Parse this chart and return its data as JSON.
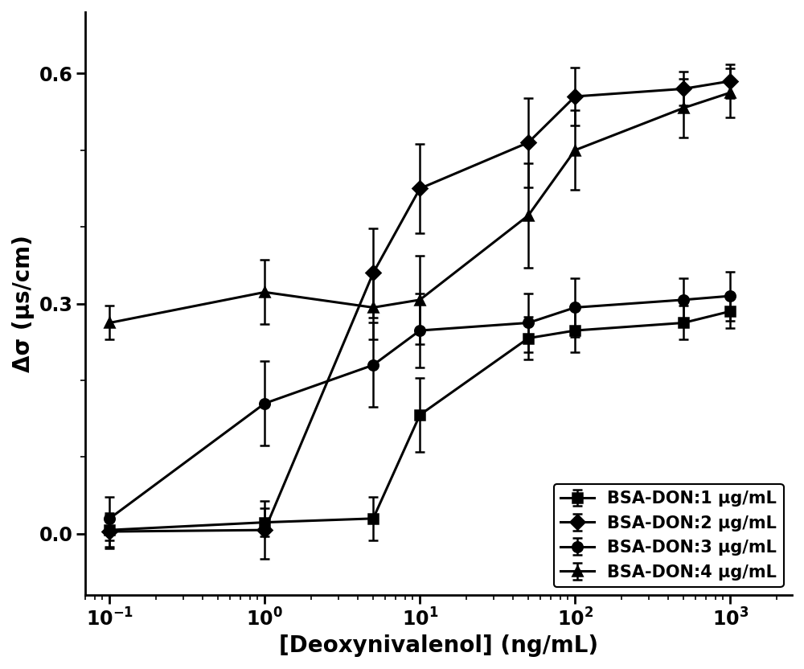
{
  "x_values": [
    0.1,
    1.0,
    5.0,
    10.0,
    50.0,
    100.0,
    500.0,
    1000.0
  ],
  "series": [
    {
      "label": "BSA-DON:1 μg/mL",
      "y": [
        0.005,
        0.015,
        0.02,
        0.155,
        0.255,
        0.265,
        0.275,
        0.29
      ],
      "yerr": [
        0.022,
        0.018,
        0.028,
        0.048,
        0.028,
        0.028,
        0.022,
        0.022
      ],
      "marker": "s"
    },
    {
      "label": "BSA-DON:2 μg/mL",
      "y": [
        0.003,
        0.005,
        0.34,
        0.45,
        0.51,
        0.57,
        0.58,
        0.59
      ],
      "yerr": [
        0.022,
        0.038,
        0.058,
        0.058,
        0.058,
        0.038,
        0.022,
        0.022
      ],
      "marker": "D"
    },
    {
      "label": "BSA-DON:3 μg/mL",
      "y": [
        0.02,
        0.17,
        0.22,
        0.265,
        0.275,
        0.295,
        0.305,
        0.31
      ],
      "yerr": [
        0.028,
        0.055,
        0.055,
        0.048,
        0.038,
        0.038,
        0.028,
        0.032
      ],
      "marker": "o"
    },
    {
      "label": "BSA-DON:4 μg/mL",
      "y": [
        0.275,
        0.315,
        0.295,
        0.305,
        0.415,
        0.5,
        0.555,
        0.575
      ],
      "yerr": [
        0.022,
        0.042,
        0.042,
        0.058,
        0.068,
        0.052,
        0.038,
        0.032
      ],
      "marker": "^"
    }
  ],
  "xlabel": "[Deoxynivalenol] (ng/mL)",
  "ylabel": "Δσ (μs/cm)",
  "ylim": [
    -0.08,
    0.68
  ],
  "xlim": [
    0.07,
    2500
  ],
  "yticks": [
    0.0,
    0.3,
    0.6
  ],
  "line_color": "#000000",
  "line_width": 2.2,
  "marker_size": 9,
  "marker_fill": "#000000",
  "capsize": 4,
  "elinewidth": 1.8,
  "legend_loc": "lower right",
  "legend_fontsize": 15,
  "axis_label_fontsize": 20,
  "tick_label_fontsize": 17,
  "background_color": "#ffffff"
}
